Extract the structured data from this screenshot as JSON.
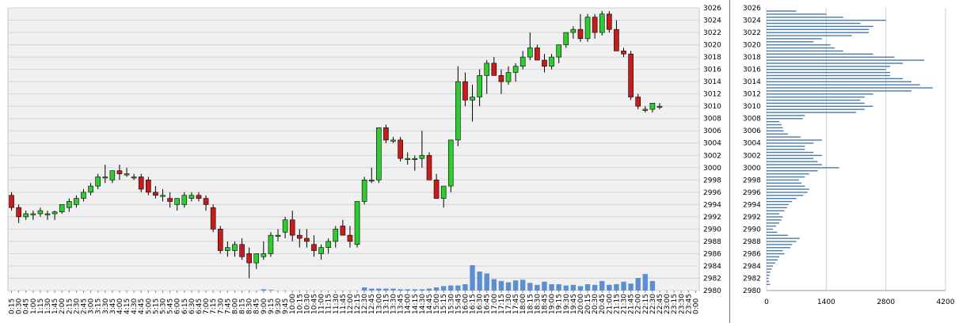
{
  "chart_data": [
    {
      "type": "candlestick",
      "ylim": [
        2980,
        3026
      ],
      "yticks": [
        2980,
        2982,
        2984,
        2986,
        2988,
        2990,
        2992,
        2994,
        2996,
        2998,
        3000,
        3002,
        3004,
        3006,
        3008,
        3010,
        3012,
        3014,
        3016,
        3018,
        3020,
        3022,
        3024,
        3026
      ],
      "grid": true,
      "colors": {
        "up": "#2ecc2e",
        "down": "#c81c1c",
        "volume": "#5b8fd1",
        "plot_bg": "#f0f0f0",
        "grid": "#d4d4d4"
      },
      "x_labels": [
        "0:15",
        "0:30",
        "0:45",
        "1:00",
        "1:15",
        "1:30",
        "1:45",
        "2:00",
        "2:15",
        "2:30",
        "2:45",
        "3:00",
        "3:15",
        "3:30",
        "3:45",
        "4:00",
        "4:15",
        "4:30",
        "4:45",
        "5:00",
        "5:15",
        "5:30",
        "5:45",
        "6:00",
        "6:15",
        "6:30",
        "6:45",
        "7:00",
        "7:15",
        "7:30",
        "7:45",
        "8:00",
        "8:15",
        "8:30",
        "8:45",
        "9:00",
        "9:15",
        "9:30",
        "9:45",
        "10:00",
        "10:15",
        "10:30",
        "10:45",
        "11:00",
        "11:15",
        "11:30",
        "11:45",
        "12:00",
        "12:15",
        "12:30",
        "12:45",
        "13:00",
        "13:15",
        "13:30",
        "13:45",
        "14:00",
        "14:15",
        "14:30",
        "14:45",
        "15:00",
        "15:15",
        "15:30",
        "15:45",
        "16:00",
        "16:15",
        "16:30",
        "16:45",
        "17:00",
        "17:15",
        "17:30",
        "17:45",
        "18:00",
        "18:15",
        "18:30",
        "18:45",
        "19:00",
        "19:15",
        "19:30",
        "19:45",
        "20:00",
        "20:15",
        "20:30",
        "20:45",
        "21:00",
        "21:15",
        "21:30",
        "21:45",
        "22:00",
        "22:15",
        "22:30",
        "22:45",
        "23:00",
        "23:15",
        "23:30",
        "23:45",
        "0:00"
      ],
      "candles": [
        [
          2995.5,
          2996,
          2993,
          2993.5
        ],
        [
          2993.5,
          2994,
          2991,
          2992
        ],
        [
          2992,
          2993,
          2991.5,
          2992.5
        ],
        [
          2992.5,
          2993,
          2991.5,
          2992.5
        ],
        [
          2992.5,
          2993.5,
          2992,
          2993
        ],
        [
          2992.5,
          2993,
          2991.5,
          2992.5
        ],
        [
          2992.5,
          2993,
          2991.5,
          2992.8
        ],
        [
          2992.8,
          2994,
          2992.5,
          2994
        ],
        [
          2993.5,
          2995,
          2992.8,
          2994.5
        ],
        [
          2994,
          2995.5,
          2993.5,
          2995
        ],
        [
          2995,
          2996.5,
          2994.5,
          2996
        ],
        [
          2996,
          2997.5,
          2995.5,
          2997
        ],
        [
          2997,
          2999,
          2996.5,
          2998.5
        ],
        [
          2998.5,
          3000.5,
          2997.5,
          2998.5
        ],
        [
          2998,
          2999.5,
          2997.5,
          2999.5
        ],
        [
          2999.5,
          3000.5,
          2998,
          2999
        ],
        [
          2999,
          3000,
          2998.5,
          2999
        ],
        [
          2998.5,
          2999,
          2998,
          2998.5
        ],
        [
          2998.5,
          2999,
          2996,
          2996.5
        ],
        [
          2998,
          2998.5,
          2995.5,
          2996
        ],
        [
          2996,
          2997,
          2995,
          2995.5
        ],
        [
          2995.5,
          2996.5,
          2994.5,
          2995.5
        ],
        [
          2995,
          2996,
          2993.5,
          2994.5
        ],
        [
          2994,
          2995,
          2993,
          2995
        ],
        [
          2994,
          2996,
          2993.5,
          2995.5
        ],
        [
          2995,
          2996,
          2994.5,
          2995.5
        ],
        [
          2995.5,
          2996,
          2994.5,
          2995
        ],
        [
          2995,
          2995.5,
          2993,
          2994
        ],
        [
          2993.5,
          2994,
          2989.5,
          2990
        ],
        [
          2990,
          2990.5,
          2986,
          2986.5
        ],
        [
          2986.5,
          2988,
          2985.5,
          2987
        ],
        [
          2986.5,
          2988,
          2985.5,
          2987.5
        ],
        [
          2987.5,
          2988.5,
          2985,
          2985.5
        ],
        [
          2986,
          2987,
          2982,
          2984.5
        ],
        [
          2984.5,
          2986,
          2983.5,
          2986
        ],
        [
          2985.5,
          2988,
          2985,
          2986
        ],
        [
          2986,
          2989.5,
          2985.5,
          2989
        ],
        [
          2989,
          2990,
          2988,
          2989
        ],
        [
          2989.5,
          2992,
          2988.5,
          2991.5
        ],
        [
          2991.5,
          2993,
          2988,
          2989
        ],
        [
          2989,
          2990,
          2987,
          2988.5
        ],
        [
          2988.5,
          2990,
          2987,
          2988
        ],
        [
          2987.5,
          2989,
          2985.5,
          2986.5
        ],
        [
          2986,
          2987.5,
          2985,
          2987
        ],
        [
          2987,
          2988.5,
          2986,
          2988
        ],
        [
          2988,
          2990.5,
          2987,
          2990
        ],
        [
          2990.5,
          2991.5,
          2989,
          2989
        ],
        [
          2989,
          2990.5,
          2987,
          2988
        ],
        [
          2987.5,
          2994.5,
          2987,
          2994.5
        ],
        [
          2994.5,
          2998.5,
          2994,
          2998
        ],
        [
          2998,
          3000,
          2997.5,
          2998
        ],
        [
          2998,
          3006.5,
          2997.5,
          3006.5
        ],
        [
          3006.5,
          3007,
          3004,
          3004.5
        ],
        [
          3004.5,
          3005,
          3004,
          3004.5
        ],
        [
          3004.5,
          3005,
          3001,
          3001.5
        ],
        [
          3001.5,
          3002.5,
          3000.5,
          3001.5
        ],
        [
          3001.5,
          3002,
          2999.5,
          3001.5
        ],
        [
          3001.5,
          3006,
          3000,
          3002
        ],
        [
          3002,
          3002.5,
          2998,
          2998
        ],
        [
          2998,
          2999,
          2995,
          2995
        ],
        [
          2995,
          2997,
          2993.5,
          2997
        ],
        [
          2997,
          3004.5,
          2996,
          3004.5
        ],
        [
          3004.5,
          3016.5,
          3003.5,
          3014
        ],
        [
          3014,
          3015.5,
          3010,
          3011
        ],
        [
          3011,
          3013.5,
          3007.5,
          3011.5
        ],
        [
          3011.5,
          3016,
          3010,
          3015
        ],
        [
          3015,
          3017.5,
          3012,
          3017
        ],
        [
          3017,
          3018,
          3015,
          3015
        ],
        [
          3015,
          3016,
          3012,
          3014
        ],
        [
          3014,
          3016.5,
          3013.5,
          3015.5
        ],
        [
          3015.5,
          3017,
          3014,
          3016.5
        ],
        [
          3016.5,
          3019,
          3016,
          3018
        ],
        [
          3018,
          3022,
          3017.5,
          3019.5
        ],
        [
          3019.5,
          3020,
          3017.5,
          3017.5
        ],
        [
          3017.5,
          3018.5,
          3015.5,
          3016.5
        ],
        [
          3016.5,
          3018.5,
          3016,
          3018
        ],
        [
          3018,
          3020,
          3017,
          3020
        ],
        [
          3020,
          3022,
          3019.5,
          3022
        ],
        [
          3022,
          3023,
          3021,
          3022.5
        ],
        [
          3022.5,
          3025,
          3020.5,
          3021
        ],
        [
          3021,
          3025,
          3020.5,
          3024.5
        ],
        [
          3024.5,
          3025,
          3021,
          3022
        ],
        [
          3022,
          3025.5,
          3021.5,
          3025
        ],
        [
          3025,
          3025.5,
          3022,
          3022.5
        ],
        [
          3022.5,
          3024,
          3019,
          3019
        ],
        [
          3019,
          3019.5,
          3018,
          3018.5
        ],
        [
          3018.5,
          3019,
          3011,
          3011.5
        ],
        [
          3011.5,
          3012,
          3009.5,
          3010
        ],
        [
          3009.5,
          3010,
          3009,
          3009.5
        ],
        [
          3009.5,
          3010.5,
          3009,
          3010.5
        ],
        [
          3010,
          3010.5,
          3009.5,
          3010
        ],
        [
          3010,
          3010,
          3010,
          3010
        ],
        [
          3010,
          3010,
          3010,
          3010
        ],
        [
          3010,
          3010,
          3010,
          3010
        ],
        [
          3010,
          3010,
          3010,
          3010
        ],
        [
          3010,
          3010,
          3010,
          3010
        ]
      ],
      "volume_y_per_unit": 1,
      "volume": [
        0,
        0,
        0,
        0,
        0,
        0,
        0,
        0,
        0,
        0,
        0,
        0,
        0,
        0,
        0,
        0,
        0,
        0,
        0,
        0,
        0,
        0,
        0,
        0,
        0,
        0,
        0,
        0,
        0,
        0,
        0,
        0,
        0,
        0,
        0,
        0.2,
        0.1,
        0,
        0,
        0,
        0,
        0,
        0,
        0,
        0,
        0,
        0,
        0,
        0,
        0.5,
        0.3,
        0.3,
        0.3,
        0.3,
        0.2,
        0.2,
        0.2,
        0.2,
        0.3,
        0.5,
        0.7,
        0.8,
        0.8,
        1.0,
        4.0,
        3.0,
        2.7,
        1.8,
        1.5,
        1.3,
        1.6,
        1.7,
        1.2,
        0.9,
        1.4,
        1.0,
        1.0,
        0.8,
        0.9,
        0.7,
        1.0,
        0.9,
        1.5,
        0.9,
        1.0,
        1.4,
        1.1,
        2.0,
        2.6,
        1.5,
        0,
        0,
        0,
        0,
        0,
        0
      ],
      "volume_max_days": 4.0
    },
    {
      "type": "bar",
      "orientation": "horizontal",
      "ylim": [
        2980,
        3026
      ],
      "xlim": [
        0,
        4200
      ],
      "xticks": [
        0,
        1400,
        2800,
        4200
      ],
      "yticks": [
        2982,
        2984,
        2986,
        2988,
        2990,
        2992,
        2994,
        2996,
        2998,
        3000,
        3002,
        3004,
        3006,
        3008,
        3010,
        3012,
        3014,
        3016,
        3018,
        3020,
        3022,
        3024,
        3026
      ],
      "grid": true,
      "colors": {
        "bar": "#4a7aa8"
      },
      "bins": [
        [
          2981.0,
          80
        ],
        [
          2981.5,
          60
        ],
        [
          2982.0,
          50
        ],
        [
          2982.5,
          70
        ],
        [
          2983.0,
          90
        ],
        [
          2983.5,
          120
        ],
        [
          2984.0,
          150
        ],
        [
          2984.5,
          200
        ],
        [
          2985.0,
          260
        ],
        [
          2985.5,
          300
        ],
        [
          2986.0,
          420
        ],
        [
          2986.5,
          380
        ],
        [
          2987.0,
          560
        ],
        [
          2987.5,
          600
        ],
        [
          2988.0,
          700
        ],
        [
          2988.5,
          780
        ],
        [
          2989.0,
          500
        ],
        [
          2989.5,
          250
        ],
        [
          2990.0,
          150
        ],
        [
          2990.5,
          220
        ],
        [
          2991.0,
          300
        ],
        [
          2991.5,
          350
        ],
        [
          2992.0,
          380
        ],
        [
          2992.5,
          300
        ],
        [
          2993.0,
          420
        ],
        [
          2993.5,
          480
        ],
        [
          2994.0,
          520
        ],
        [
          2994.5,
          600
        ],
        [
          2995.0,
          700
        ],
        [
          2995.5,
          860
        ],
        [
          2996.0,
          960
        ],
        [
          2996.5,
          1000
        ],
        [
          2997.0,
          900
        ],
        [
          2997.5,
          820
        ],
        [
          2998.0,
          760
        ],
        [
          2998.5,
          900
        ],
        [
          2999.0,
          1000
        ],
        [
          2999.5,
          1200
        ],
        [
          3000.0,
          1700
        ],
        [
          3000.5,
          1300
        ],
        [
          3001.0,
          1200
        ],
        [
          3001.5,
          1100
        ],
        [
          3002.0,
          1300
        ],
        [
          3002.5,
          1100
        ],
        [
          3003.0,
          900
        ],
        [
          3003.5,
          900
        ],
        [
          3004.0,
          1100
        ],
        [
          3004.5,
          1300
        ],
        [
          3005.0,
          800
        ],
        [
          3005.5,
          500
        ],
        [
          3006.0,
          400
        ],
        [
          3006.5,
          380
        ],
        [
          3007.0,
          350
        ],
        [
          3007.5,
          300
        ],
        [
          3008.0,
          850
        ],
        [
          3008.5,
          900
        ],
        [
          3009.0,
          2100
        ],
        [
          3009.5,
          2300
        ],
        [
          3010.0,
          2500
        ],
        [
          3010.5,
          2300
        ],
        [
          3011.0,
          2200
        ],
        [
          3011.5,
          2300
        ],
        [
          3012.0,
          2500
        ],
        [
          3012.5,
          3400
        ],
        [
          3013.0,
          3900
        ],
        [
          3013.5,
          3600
        ],
        [
          3014.0,
          3400
        ],
        [
          3014.5,
          3200
        ],
        [
          3015.0,
          2900
        ],
        [
          3015.5,
          2900
        ],
        [
          3016.0,
          2800
        ],
        [
          3016.5,
          2900
        ],
        [
          3017.0,
          3200
        ],
        [
          3017.5,
          3700
        ],
        [
          3018.0,
          3000
        ],
        [
          3018.5,
          2500
        ],
        [
          3019.0,
          1800
        ],
        [
          3019.5,
          1600
        ],
        [
          3020.0,
          1500
        ],
        [
          3020.5,
          1100
        ],
        [
          3021.0,
          1300
        ],
        [
          3021.5,
          2000
        ],
        [
          3022.0,
          2400
        ],
        [
          3022.5,
          2400
        ],
        [
          3023.0,
          2500
        ],
        [
          3023.5,
          2200
        ],
        [
          3024.0,
          2800
        ],
        [
          3024.5,
          1800
        ],
        [
          3025.0,
          1400
        ],
        [
          3025.5,
          700
        ]
      ]
    }
  ]
}
